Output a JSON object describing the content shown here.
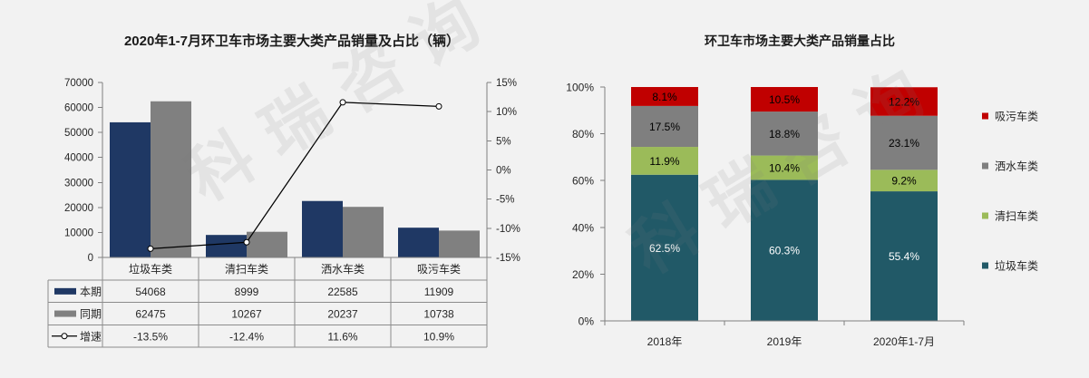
{
  "watermark": "科瑞咨询",
  "chart_data": [
    {
      "type": "bar",
      "title": "2020年1-7月环卫车市场主要大类产品销量及占比（辆）",
      "categories": [
        "垃圾车类",
        "清扫车类",
        "洒水车类",
        "吸污车类"
      ],
      "series": [
        {
          "name": "本期",
          "type": "bar",
          "axis": "primary",
          "color": "#1f3864",
          "values": [
            54068,
            8999,
            22585,
            11909
          ]
        },
        {
          "name": "同期",
          "type": "bar",
          "axis": "primary",
          "color": "#808080",
          "values": [
            62475,
            10267,
            20237,
            10738
          ]
        },
        {
          "name": "增速",
          "type": "line",
          "axis": "secondary",
          "marker": "circle",
          "color": "#000000",
          "values": [
            -13.5,
            -12.4,
            11.6,
            10.9
          ],
          "labels": [
            "-13.5%",
            "-12.4%",
            "11.6%",
            "10.9%"
          ]
        }
      ],
      "ylim": [
        0,
        70000
      ],
      "yticks": [
        "0",
        "10000",
        "20000",
        "30000",
        "40000",
        "50000",
        "60000",
        "70000"
      ],
      "y2lim": [
        -15,
        15
      ],
      "y2ticks": [
        "-15%",
        "-10%",
        "-5%",
        "0%",
        "5%",
        "10%",
        "15%"
      ],
      "grid": false,
      "legend": "data-table"
    },
    {
      "type": "bar",
      "stacked": "percent",
      "title": "环卫车市场主要大类产品销量占比",
      "categories": [
        "2018年",
        "2019年",
        "2020年1-7月"
      ],
      "series": [
        {
          "name": "垃圾车类",
          "color": "#215967",
          "label_color": "#ffffff",
          "values": [
            62.5,
            60.3,
            55.4
          ]
        },
        {
          "name": "清扫车类",
          "color": "#9bbb59",
          "label_color": "#000000",
          "values": [
            11.9,
            10.4,
            9.2
          ]
        },
        {
          "name": "洒水车类",
          "color": "#7f7f7f",
          "label_color": "#000000",
          "values": [
            17.5,
            18.8,
            23.1
          ]
        },
        {
          "name": "吸污车类",
          "color": "#c00000",
          "label_color": "#000000",
          "values": [
            8.1,
            10.5,
            12.2
          ]
        }
      ],
      "ylim": [
        0,
        100
      ],
      "yticks": [
        "0%",
        "20%",
        "40%",
        "60%",
        "80%",
        "100%"
      ],
      "grid": false,
      "legend": "right"
    }
  ]
}
